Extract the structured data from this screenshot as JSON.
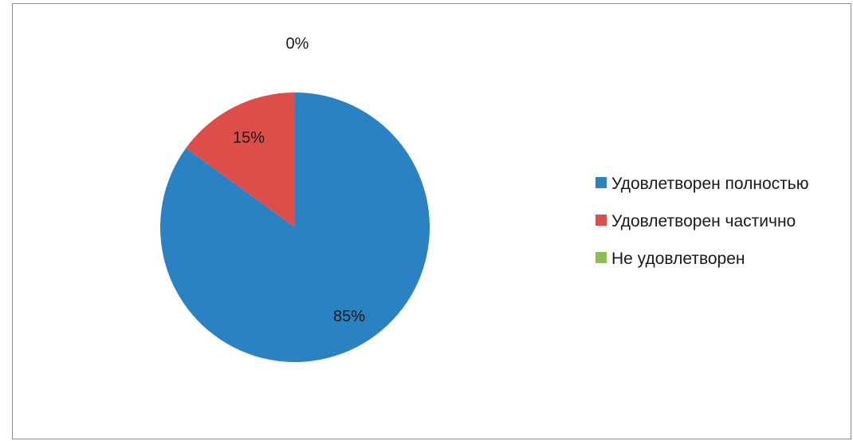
{
  "chart_data": {
    "type": "pie",
    "title": "",
    "categories": [
      "Удовлетворен полностью",
      "Удовлетворен частично",
      "Не удовлетворен"
    ],
    "values": [
      85,
      15,
      0
    ],
    "data_labels": [
      "85%",
      "15%",
      "0%"
    ],
    "colors": [
      "#2a82c3",
      "#dd4e4b",
      "#8cbf4f"
    ],
    "legend_position": "right"
  }
}
